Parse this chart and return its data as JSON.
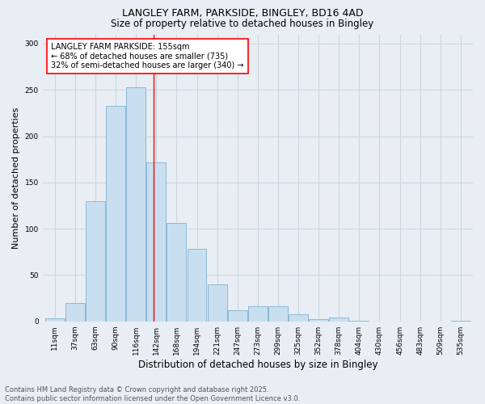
{
  "title1": "LANGLEY FARM, PARKSIDE, BINGLEY, BD16 4AD",
  "title2": "Size of property relative to detached houses in Bingley",
  "xlabel": "Distribution of detached houses by size in Bingley",
  "ylabel": "Number of detached properties",
  "footer1": "Contains HM Land Registry data © Crown copyright and database right 2025.",
  "footer2": "Contains public sector information licensed under the Open Government Licence v3.0.",
  "annotation_title": "LANGLEY FARM PARKSIDE: 155sqm",
  "annotation_line1": "← 68% of detached houses are smaller (735)",
  "annotation_line2": "32% of semi-detached houses are larger (340) →",
  "bar_labels": [
    "11sqm",
    "37sqm",
    "63sqm",
    "90sqm",
    "116sqm",
    "142sqm",
    "168sqm",
    "194sqm",
    "221sqm",
    "247sqm",
    "273sqm",
    "299sqm",
    "325sqm",
    "352sqm",
    "378sqm",
    "404sqm",
    "430sqm",
    "456sqm",
    "483sqm",
    "509sqm",
    "535sqm"
  ],
  "bar_values": [
    3,
    20,
    130,
    233,
    253,
    172,
    106,
    78,
    40,
    12,
    16,
    16,
    8,
    2,
    4,
    1,
    0,
    0,
    0,
    0,
    1
  ],
  "bar_color": "#c9dff0",
  "bar_edge_color": "#8ab8d8",
  "grid_color": "#ccd6e0",
  "background_color": "#e8eef4",
  "vline_color": "red",
  "vline_bar_index": 4.85,
  "annotation_box_color": "white",
  "annotation_box_edge_color": "red",
  "ylim": [
    0,
    310
  ],
  "yticks": [
    0,
    50,
    100,
    150,
    200,
    250,
    300
  ],
  "title1_fontsize": 9,
  "title2_fontsize": 8.5,
  "xlabel_fontsize": 8.5,
  "ylabel_fontsize": 8,
  "tick_fontsize": 6.5,
  "annotation_fontsize": 7,
  "footer_fontsize": 6
}
